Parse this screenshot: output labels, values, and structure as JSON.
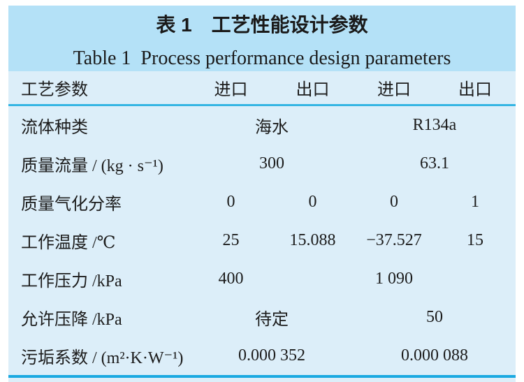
{
  "title": {
    "zh": "表 1　工艺性能设计参数",
    "en": "Table 1  Process performance design parameters"
  },
  "colors": {
    "caption_panel_bg": "#b4e1f7",
    "table_bg": "#dceef9",
    "rule_accent": "#1aa9e1",
    "text": "#1c1c1c"
  },
  "table": {
    "type": "table",
    "header": {
      "cells": [
        "工艺参数",
        "进口",
        "出口",
        "进口",
        "出口"
      ]
    },
    "rows": [
      {
        "label": "流体种类",
        "values": [
          "海水",
          "R134a"
        ]
      },
      {
        "label": "质量流量 / (kg · s⁻¹)",
        "values": [
          "300",
          "63.1"
        ]
      },
      {
        "label": "质量气化分率",
        "values": [
          "0",
          "0",
          "0",
          "1"
        ]
      },
      {
        "label": "工作温度 /℃",
        "values": [
          "25",
          "15.088",
          "−37.527",
          "15"
        ]
      },
      {
        "label": "工作压力 /kPa",
        "values": [
          "400",
          "",
          "1 090",
          ""
        ]
      },
      {
        "label": "允许压降 /kPa",
        "values": [
          "待定",
          "50"
        ]
      },
      {
        "label": "污垢系数 / (m²·K·W⁻¹)",
        "values": [
          "0.000 352",
          "0.000 088"
        ]
      }
    ]
  }
}
